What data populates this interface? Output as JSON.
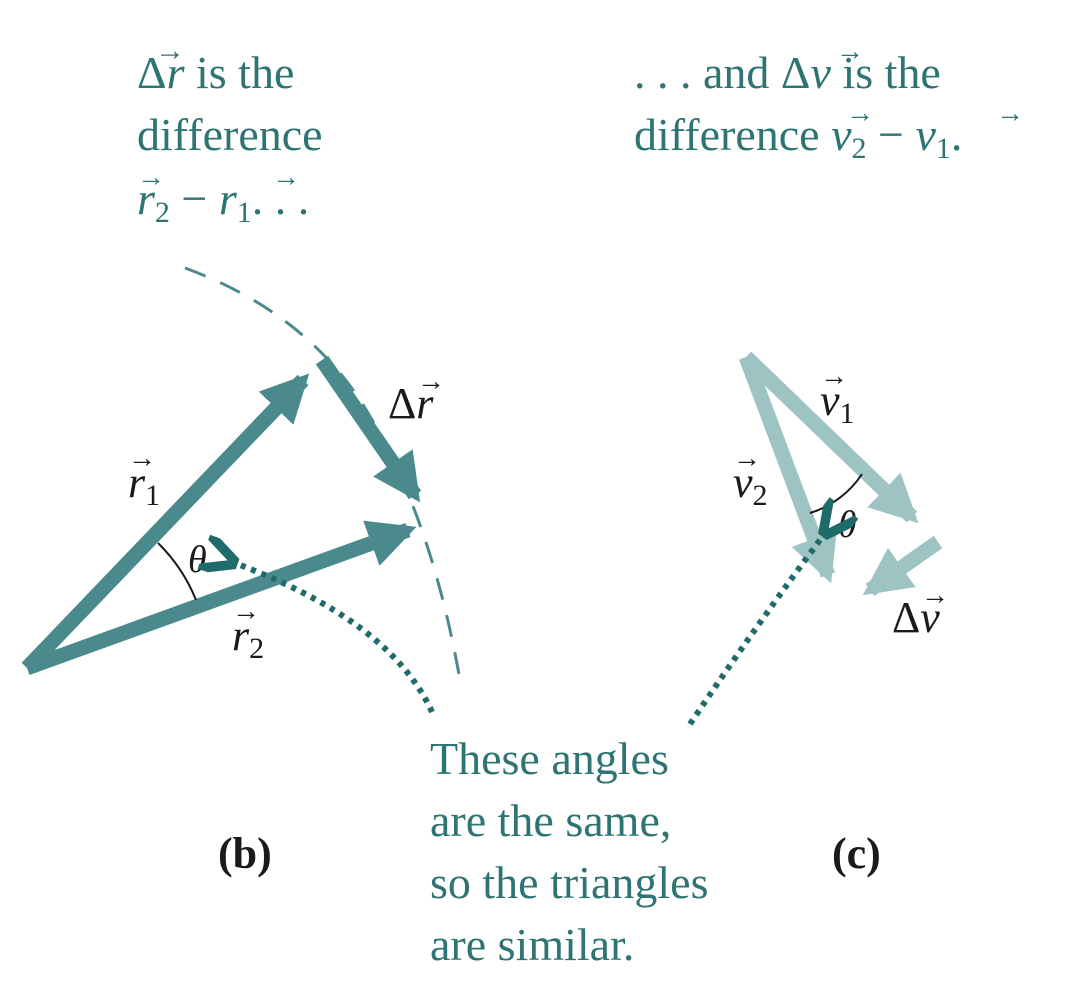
{
  "colors": {
    "caption_teal": "#2d7473",
    "position_vectors": "#4a8a8c",
    "velocity_vectors": "#9dc3c2",
    "dotted_pointer": "#1f6b6a",
    "dashed_arc": "#4a8a8c",
    "labels": "#1a1a1a"
  },
  "caption_left": {
    "line1_sym": "r",
    "line1_rest": " is the",
    "line2": "difference",
    "line3_a_sub": "2",
    "line3_minus": " − ",
    "line3_b_sub": "1",
    "line3_trail": ". . ."
  },
  "caption_right": {
    "line1_lead": ". . . and ",
    "line1_sym": "v",
    "line1_rest": " is the",
    "line2_lead": "difference ",
    "line2_a_sub": "2",
    "line2_minus": " − ",
    "line2_b_sub": "1",
    "line2_trail": "."
  },
  "panel_b": {
    "label": "(b)",
    "vec_r1": {
      "sym": "r",
      "sub": "1"
    },
    "vec_r2": {
      "sym": "r",
      "sub": "2"
    },
    "delta_r": {
      "sym": "r"
    },
    "angle": "θ"
  },
  "panel_c": {
    "label": "(c)",
    "vec_v1": {
      "sym": "v",
      "sub": "1"
    },
    "vec_v2": {
      "sym": "v",
      "sub": "2"
    },
    "delta_v": {
      "sym": "v"
    },
    "angle": "θ"
  },
  "note": {
    "lines": [
      "These angles",
      "are the same,",
      "so the triangles",
      "are similar."
    ]
  },
  "delta_glyph": "Δ",
  "arrow_glyph": "→"
}
